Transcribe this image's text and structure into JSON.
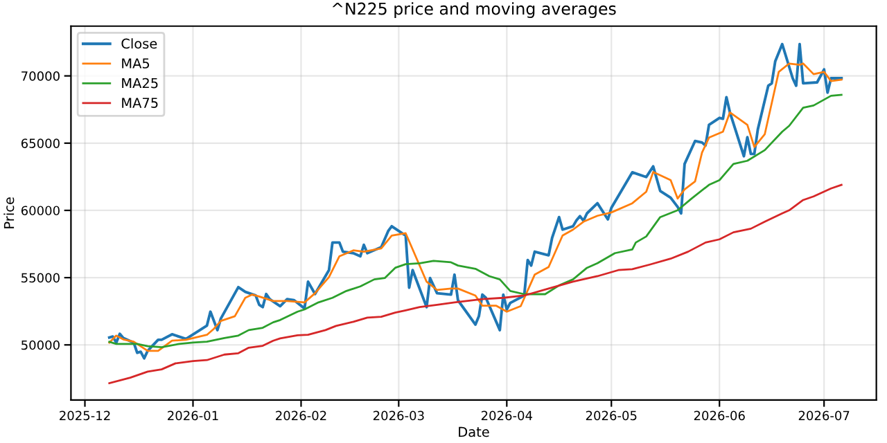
{
  "chart_data": {
    "type": "line",
    "title": "^N225 price and moving averages",
    "xlabel": "Date",
    "ylabel": "Price",
    "xlim": [
      "2025-11-27",
      "2026-07-16"
    ],
    "ylim": [
      45900,
      73700
    ],
    "xticks": [
      {
        "value": "2025-12-01",
        "label": "2025-12"
      },
      {
        "value": "2026-01-01",
        "label": "2026-01"
      },
      {
        "value": "2026-02-01",
        "label": "2026-02"
      },
      {
        "value": "2026-03-01",
        "label": "2026-03"
      },
      {
        "value": "2026-04-01",
        "label": "2026-04"
      },
      {
        "value": "2026-05-01",
        "label": "2026-05"
      },
      {
        "value": "2026-06-01",
        "label": "2026-06"
      },
      {
        "value": "2026-07-01",
        "label": "2026-07"
      }
    ],
    "yticks": [
      50000,
      55000,
      60000,
      65000,
      70000
    ],
    "grid": true,
    "legend": "top left",
    "series": [
      {
        "name": "Close",
        "color": "#1f77b4",
        "x": [
          "2025-12-08",
          "2025-12-09",
          "2025-12-10",
          "2025-12-11",
          "2025-12-12",
          "2025-12-15",
          "2025-12-16",
          "2025-12-17",
          "2025-12-18",
          "2025-12-19",
          "2025-12-22",
          "2025-12-23",
          "2025-12-26",
          "2025-12-30",
          "2026-01-05",
          "2026-01-06",
          "2026-01-08",
          "2026-01-09",
          "2026-01-14",
          "2026-01-16",
          "2026-01-19",
          "2026-01-20",
          "2026-01-21",
          "2026-01-22",
          "2026-01-23",
          "2026-01-26",
          "2026-01-28",
          "2026-01-30",
          "2026-02-02",
          "2026-02-03",
          "2026-02-05",
          "2026-02-09",
          "2026-02-10",
          "2026-02-12",
          "2026-02-13",
          "2026-02-16",
          "2026-02-18",
          "2026-02-19",
          "2026-02-20",
          "2026-02-24",
          "2026-02-26",
          "2026-02-27",
          "2026-03-03",
          "2026-03-04",
          "2026-03-05",
          "2026-03-09",
          "2026-03-10",
          "2026-03-12",
          "2026-03-16",
          "2026-03-17",
          "2026-03-18",
          "2026-03-23",
          "2026-03-24",
          "2026-03-25",
          "2026-03-26",
          "2026-03-30",
          "2026-03-31",
          "2026-04-01",
          "2026-04-02",
          "2026-04-06",
          "2026-04-07",
          "2026-04-08",
          "2026-04-09",
          "2026-04-13",
          "2026-04-14",
          "2026-04-16",
          "2026-04-17",
          "2026-04-20",
          "2026-04-21",
          "2026-04-22",
          "2026-04-23",
          "2026-04-24",
          "2026-04-27",
          "2026-04-30",
          "2026-05-01",
          "2026-05-07",
          "2026-05-11",
          "2026-05-13",
          "2026-05-15",
          "2026-05-18",
          "2026-05-20",
          "2026-05-21",
          "2026-05-22",
          "2026-05-25",
          "2026-05-27",
          "2026-05-28",
          "2026-05-29",
          "2026-06-01",
          "2026-06-02",
          "2026-06-03",
          "2026-06-04",
          "2026-06-08",
          "2026-06-09",
          "2026-06-10",
          "2026-06-11",
          "2026-06-12",
          "2026-06-15",
          "2026-06-16",
          "2026-06-17",
          "2026-06-19",
          "2026-06-22",
          "2026-06-23",
          "2026-06-24",
          "2026-06-25",
          "2026-06-29",
          "2026-07-01",
          "2026-07-02",
          "2026-07-03",
          "2026-07-06"
        ],
        "values": [
          50550,
          50620,
          50170,
          50820,
          50510,
          50170,
          49410,
          49490,
          49000,
          49560,
          50380,
          50380,
          50790,
          50440,
          51440,
          52470,
          51100,
          51960,
          54290,
          53940,
          53670,
          52980,
          52810,
          53780,
          53400,
          52880,
          53400,
          53320,
          52710,
          54700,
          53780,
          55560,
          57610,
          57610,
          56930,
          56820,
          56590,
          57440,
          56820,
          57270,
          58470,
          58820,
          58130,
          54250,
          55560,
          52810,
          54970,
          53840,
          53740,
          55220,
          53320,
          51510,
          52130,
          53740,
          53500,
          51100,
          53740,
          52640,
          53120,
          53670,
          56310,
          55900,
          56930,
          56660,
          57960,
          59500,
          58570,
          58820,
          59260,
          59570,
          59230,
          59780,
          60530,
          59330,
          60190,
          62830,
          62480,
          63270,
          61450,
          60940,
          60260,
          59780,
          63450,
          65160,
          65050,
          64820,
          66360,
          66880,
          66810,
          68420,
          67290,
          64030,
          65440,
          64200,
          64200,
          66020,
          69270,
          69450,
          71090,
          72360,
          69830,
          69270,
          72360,
          69450,
          69520,
          70480,
          68760,
          69830,
          69830
        ]
      },
      {
        "name": "MA5",
        "color": "#ff7f0e",
        "x": [
          "2025-12-08",
          "2025-12-10",
          "2025-12-12",
          "2025-12-15",
          "2025-12-19",
          "2025-12-22",
          "2025-12-26",
          "2025-12-30",
          "2026-01-05",
          "2026-01-07",
          "2026-01-09",
          "2026-01-13",
          "2026-01-16",
          "2026-01-18",
          "2026-01-20",
          "2026-01-24",
          "2026-01-28",
          "2026-02-02",
          "2026-02-05",
          "2026-02-09",
          "2026-02-12",
          "2026-02-16",
          "2026-02-19",
          "2026-02-24",
          "2026-02-27",
          "2026-03-03",
          "2026-03-05",
          "2026-03-09",
          "2026-03-12",
          "2026-03-16",
          "2026-03-18",
          "2026-03-23",
          "2026-03-25",
          "2026-03-29",
          "2026-04-01",
          "2026-04-05",
          "2026-04-09",
          "2026-04-13",
          "2026-04-17",
          "2026-04-20",
          "2026-04-23",
          "2026-04-27",
          "2026-05-01",
          "2026-05-07",
          "2026-05-11",
          "2026-05-13",
          "2026-05-18",
          "2026-05-20",
          "2026-05-22",
          "2026-05-25",
          "2026-05-27",
          "2026-05-29",
          "2026-06-02",
          "2026-06-04",
          "2026-06-09",
          "2026-06-11",
          "2026-06-14",
          "2026-06-18",
          "2026-06-21",
          "2026-06-24",
          "2026-06-25",
          "2026-06-28",
          "2026-07-01",
          "2026-07-03",
          "2026-07-06"
        ],
        "values": [
          50170,
          50690,
          50410,
          50240,
          49560,
          49560,
          50310,
          50380,
          50750,
          51200,
          51780,
          52130,
          53500,
          53740,
          53600,
          53260,
          53260,
          53160,
          53840,
          55040,
          56590,
          57030,
          56930,
          57170,
          58130,
          58300,
          57100,
          54700,
          54080,
          54190,
          54190,
          53670,
          52910,
          52910,
          52470,
          52880,
          55220,
          55790,
          58130,
          58570,
          59160,
          59600,
          59850,
          60530,
          61390,
          62860,
          62250,
          60880,
          61560,
          62150,
          64300,
          65410,
          65850,
          67290,
          66360,
          64710,
          65670,
          70300,
          70920,
          70820,
          70920,
          70130,
          70300,
          69620,
          69720
        ]
      },
      {
        "name": "MA25",
        "color": "#2ca02c",
        "x": [
          "2025-12-08",
          "2025-12-10",
          "2025-12-16",
          "2025-12-19",
          "2025-12-23",
          "2025-12-28",
          "2026-01-01",
          "2026-01-05",
          "2026-01-10",
          "2026-01-14",
          "2026-01-17",
          "2026-01-21",
          "2026-01-24",
          "2026-01-26",
          "2026-01-31",
          "2026-02-02",
          "2026-02-06",
          "2026-02-10",
          "2026-02-14",
          "2026-02-18",
          "2026-02-22",
          "2026-02-25",
          "2026-02-28",
          "2026-03-03",
          "2026-03-07",
          "2026-03-11",
          "2026-03-16",
          "2026-03-18",
          "2026-03-23",
          "2026-03-27",
          "2026-03-30",
          "2026-04-02",
          "2026-04-06",
          "2026-04-12",
          "2026-04-16",
          "2026-04-20",
          "2026-04-24",
          "2026-04-27",
          "2026-05-02",
          "2026-05-07",
          "2026-05-08",
          "2026-05-11",
          "2026-05-15",
          "2026-05-20",
          "2026-05-24",
          "2026-05-29",
          "2026-06-01",
          "2026-06-05",
          "2026-06-09",
          "2026-06-14",
          "2026-06-19",
          "2026-06-21",
          "2026-06-25",
          "2026-06-28",
          "2026-07-03",
          "2026-07-06"
        ],
        "values": [
          50230,
          50070,
          50070,
          49900,
          49830,
          50070,
          50170,
          50240,
          50510,
          50690,
          51100,
          51270,
          51680,
          51850,
          52470,
          52640,
          53160,
          53500,
          54010,
          54350,
          54870,
          54970,
          55730,
          56000,
          56070,
          56250,
          56140,
          55900,
          55660,
          55110,
          54870,
          54010,
          53770,
          53770,
          54420,
          54870,
          55730,
          56070,
          56820,
          57100,
          57610,
          58060,
          59500,
          60010,
          60880,
          61900,
          62250,
          63450,
          63690,
          64480,
          65850,
          66290,
          67630,
          67800,
          68520,
          68590
        ]
      },
      {
        "name": "MA75",
        "color": "#d62728",
        "x": [
          "2025-12-08",
          "2025-12-14",
          "2025-12-19",
          "2025-12-23",
          "2025-12-27",
          "2026-01-01",
          "2026-01-05",
          "2026-01-10",
          "2026-01-14",
          "2026-01-17",
          "2026-01-21",
          "2026-01-24",
          "2026-01-26",
          "2026-01-31",
          "2026-02-03",
          "2026-02-08",
          "2026-02-11",
          "2026-02-16",
          "2026-02-20",
          "2026-02-24",
          "2026-02-28",
          "2026-03-03",
          "2026-03-07",
          "2026-03-12",
          "2026-03-17",
          "2026-03-25",
          "2026-03-31",
          "2026-04-06",
          "2026-04-13",
          "2026-04-20",
          "2026-04-27",
          "2026-05-03",
          "2026-05-07",
          "2026-05-12",
          "2026-05-18",
          "2026-05-23",
          "2026-05-28",
          "2026-06-01",
          "2026-06-05",
          "2026-06-10",
          "2026-06-14",
          "2026-06-19",
          "2026-06-21",
          "2026-06-25",
          "2026-06-28",
          "2026-07-03",
          "2026-07-06"
        ],
        "values": [
          47150,
          47560,
          48010,
          48180,
          48630,
          48800,
          48870,
          49280,
          49380,
          49790,
          49930,
          50310,
          50480,
          50720,
          50750,
          51100,
          51410,
          51720,
          52030,
          52090,
          52400,
          52570,
          52810,
          52980,
          53160,
          53400,
          53500,
          53670,
          54190,
          54700,
          55110,
          55560,
          55630,
          55970,
          56410,
          56930,
          57610,
          57850,
          58370,
          58640,
          59160,
          59780,
          60010,
          60770,
          61040,
          61630,
          61900
        ]
      }
    ]
  }
}
